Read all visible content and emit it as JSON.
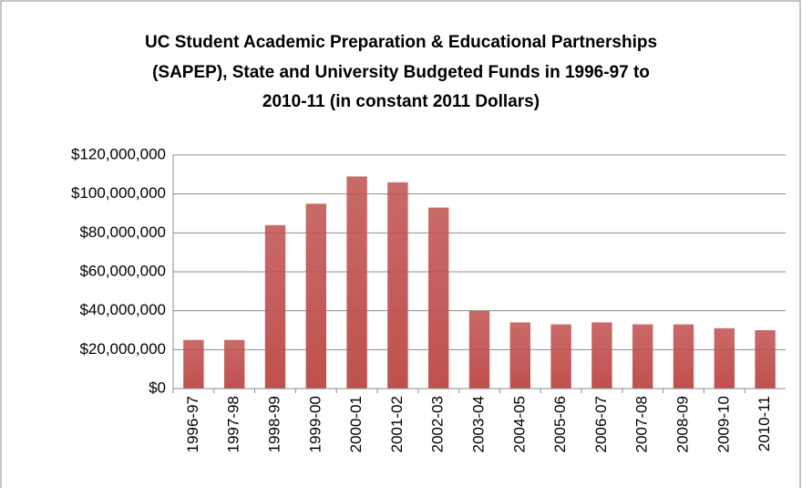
{
  "chart_data": {
    "type": "bar",
    "title": [
      "UC Student Academic Preparation & Educational Partnerships",
      "(SAPEP), State and University Budgeted Funds in 1996-97 to",
      "2010-11 (in constant 2011 Dollars)"
    ],
    "categories": [
      "1996-97",
      "1997-98",
      "1998-99",
      "1999-00",
      "2000-01",
      "2001-02",
      "2002-03",
      "2003-04",
      "2004-05",
      "2005-06",
      "2006-07",
      "2007-08",
      "2008-09",
      "2009-10",
      "2010-11"
    ],
    "values": [
      25000000,
      25000000,
      84000000,
      95000000,
      109000000,
      106000000,
      93000000,
      40000000,
      34000000,
      33000000,
      34000000,
      33000000,
      33000000,
      31000000,
      30000000
    ],
    "color": "#c0504d",
    "ylim": [
      0,
      120000000
    ],
    "yticks": [
      {
        "value": 0,
        "label": "$0"
      },
      {
        "value": 20000000,
        "label": "$20,000,000"
      },
      {
        "value": 40000000,
        "label": "$40,000,000"
      },
      {
        "value": 60000000,
        "label": "$60,000,000"
      },
      {
        "value": 80000000,
        "label": "$80,000,000"
      },
      {
        "value": 100000000,
        "label": "$100,000,000"
      },
      {
        "value": 120000000,
        "label": "$120,000,000"
      }
    ],
    "grid": true
  }
}
